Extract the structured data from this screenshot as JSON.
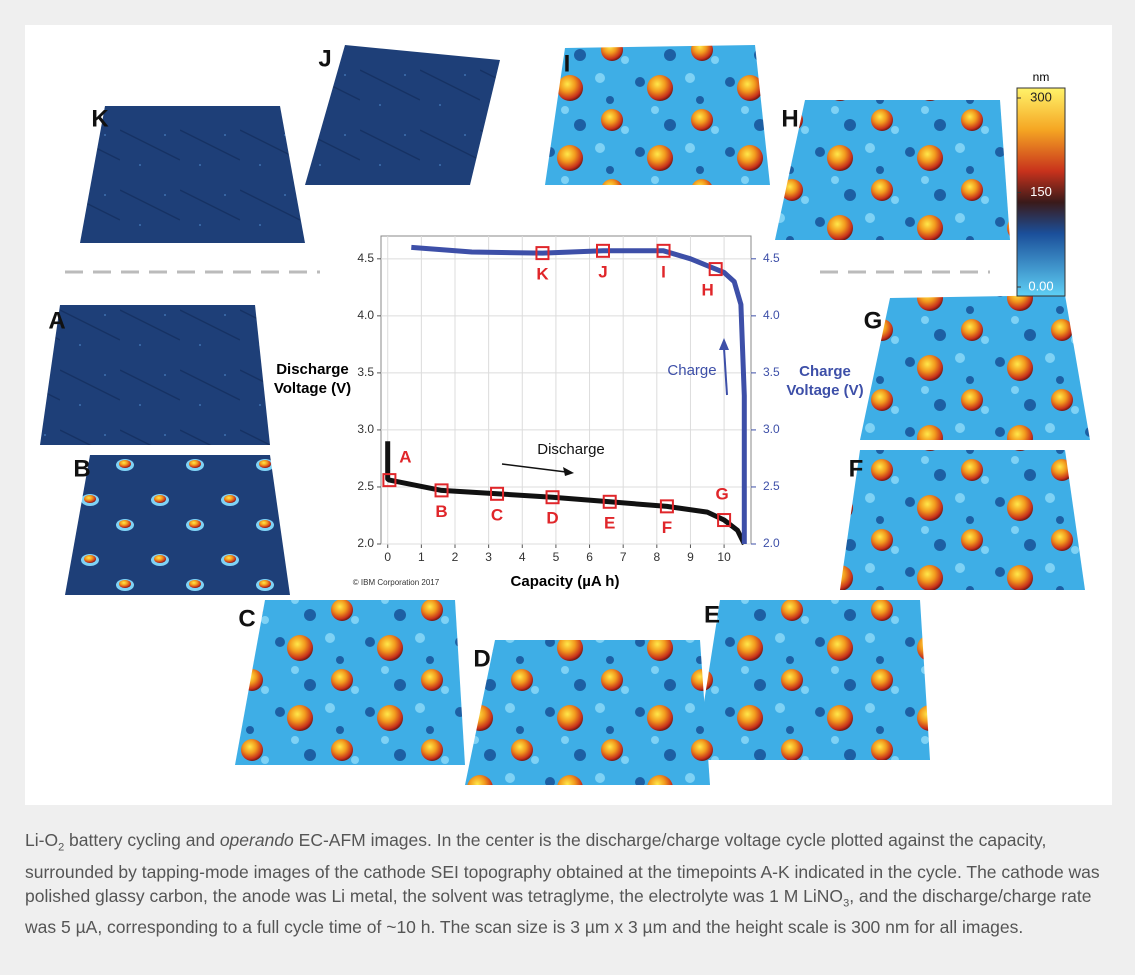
{
  "chart_data": {
    "type": "line",
    "x_label": "Capacity (µA h)",
    "y_label": "Discharge Voltage (V)",
    "y2_label": "Charge Voltage (V)",
    "xlim": [
      -0.2,
      10.8
    ],
    "xticks": [
      0,
      1,
      2,
      3,
      4,
      5,
      6,
      7,
      8,
      9,
      10
    ],
    "ylim": [
      2.0,
      4.7
    ],
    "yticks": [
      {
        "value": 2.0,
        "label": "2.0"
      },
      {
        "value": 2.5,
        "label": "2.5"
      },
      {
        "value": 3.0,
        "label": "3.0"
      },
      {
        "value": 3.5,
        "label": "3.5"
      },
      {
        "value": 4.0,
        "label": "4.0"
      },
      {
        "value": 4.5,
        "label": "4.5"
      }
    ],
    "y2lim": [
      2.0,
      4.7
    ],
    "y2ticks": [
      {
        "value": 2.0,
        "label": "2.0"
      },
      {
        "value": 2.5,
        "label": "2.5"
      },
      {
        "value": 3.0,
        "label": "3.0"
      },
      {
        "value": 3.5,
        "label": "3.5"
      },
      {
        "value": 4.0,
        "label": "4.0"
      },
      {
        "value": 4.5,
        "label": "4.5"
      }
    ],
    "grid": true,
    "series": [
      {
        "name": "Discharge",
        "color": "#111111",
        "x": [
          0,
          0,
          0.05,
          1.6,
          3.25,
          4.9,
          6.6,
          8.3,
          9.5,
          10.0,
          10.4,
          10.6
        ],
        "values": [
          2.9,
          2.57,
          2.56,
          2.47,
          2.44,
          2.41,
          2.37,
          2.33,
          2.28,
          2.21,
          2.12,
          2.0
        ]
      },
      {
        "name": "Charge",
        "color": "#3d4fa8",
        "axis": "y2",
        "x": [
          10.6,
          10.6,
          10.5,
          10.3,
          10.0,
          9.75,
          9.0,
          8.2,
          6.4,
          4.6,
          2.5,
          0.7
        ],
        "values": [
          2.0,
          3.3,
          4.1,
          4.3,
          4.38,
          4.41,
          4.5,
          4.57,
          4.57,
          4.55,
          4.56,
          4.6
        ]
      }
    ],
    "marker_color": "#e0262a",
    "points": [
      {
        "label": "A",
        "x": 0.05,
        "y": 2.56
      },
      {
        "label": "B",
        "x": 1.6,
        "y": 2.47
      },
      {
        "label": "C",
        "x": 3.25,
        "y": 2.44
      },
      {
        "label": "D",
        "x": 4.9,
        "y": 2.41
      },
      {
        "label": "E",
        "x": 6.6,
        "y": 2.37
      },
      {
        "label": "F",
        "x": 8.3,
        "y": 2.33
      },
      {
        "label": "G",
        "x": 10.0,
        "y": 2.21
      },
      {
        "label": "H",
        "x": 9.75,
        "y": 4.41
      },
      {
        "label": "I",
        "x": 8.2,
        "y": 4.57
      },
      {
        "label": "J",
        "x": 6.4,
        "y": 4.57
      },
      {
        "label": "K",
        "x": 4.6,
        "y": 4.55
      }
    ],
    "annotations": [
      "Discharge",
      "Charge",
      "© IBM Corporation 2017"
    ]
  },
  "colorbar": {
    "unit": "nm",
    "lim": [
      0,
      300
    ],
    "ticks": [
      {
        "value": 0,
        "label": "0.00"
      },
      150,
      300
    ]
  },
  "panels": [
    "K",
    "J",
    "I",
    "H",
    "A",
    "G",
    "B",
    "F",
    "C",
    "E",
    "D"
  ],
  "caption": [
    "Li-O",
    "2",
    " battery cycling and ",
    "operando",
    " EC-AFM images. In the center is the discharge/charge voltage cycle plotted against the capacity, surrounded by tapping-mode images of the cathode SEI topography obtained at the timepoints A-K indicated in the cycle. The cathode was polished glassy carbon, the anode was Li metal, the solvent was tetraglyme, the electrolyte was 1 M LiNO",
    "3",
    ", and the discharge/charge rate was 5 µA, corresponding to a full cycle time of ~10 h. The scan size is 3 µm x 3 µm and the height scale is 300 nm for all images."
  ]
}
